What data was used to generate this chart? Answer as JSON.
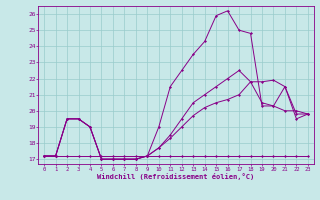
{
  "background_color": "#c8e8e8",
  "grid_color": "#99cccc",
  "line_color": "#880088",
  "xlabel": "Windchill (Refroidissement éolien,°C)",
  "xlim_min": -0.5,
  "xlim_max": 23.5,
  "ylim_min": 16.7,
  "ylim_max": 26.5,
  "yticks": [
    17,
    18,
    19,
    20,
    21,
    22,
    23,
    24,
    25,
    26
  ],
  "xticks": [
    0,
    1,
    2,
    3,
    4,
    5,
    6,
    7,
    8,
    9,
    10,
    11,
    12,
    13,
    14,
    15,
    16,
    17,
    18,
    19,
    20,
    21,
    22,
    23
  ],
  "line1_x": [
    0,
    1,
    2,
    3,
    4,
    5,
    6,
    7,
    8,
    9,
    10,
    11,
    12,
    13,
    14,
    15,
    16,
    17,
    18,
    19,
    20,
    21,
    22,
    23
  ],
  "line1_y": [
    17.2,
    17.2,
    17.2,
    17.2,
    17.2,
    17.2,
    17.2,
    17.2,
    17.2,
    17.2,
    17.2,
    17.2,
    17.2,
    17.2,
    17.2,
    17.2,
    17.2,
    17.2,
    17.2,
    17.2,
    17.2,
    17.2,
    17.2,
    17.2
  ],
  "line2_x": [
    0,
    1,
    2,
    3,
    4,
    5,
    6,
    7,
    8,
    9,
    10,
    11,
    12,
    13,
    14,
    15,
    16,
    17,
    18,
    19,
    20,
    21,
    22,
    23
  ],
  "line2_y": [
    17.2,
    17.2,
    19.5,
    19.5,
    19.0,
    17.0,
    17.0,
    17.0,
    17.0,
    17.2,
    17.7,
    18.3,
    19.0,
    19.7,
    20.2,
    20.5,
    20.7,
    21.0,
    21.8,
    20.5,
    20.3,
    20.0,
    20.0,
    19.8
  ],
  "line3_x": [
    0,
    1,
    2,
    3,
    4,
    5,
    6,
    7,
    8,
    9,
    10,
    11,
    12,
    13,
    14,
    15,
    16,
    17,
    18,
    19,
    20,
    21,
    22,
    23
  ],
  "line3_y": [
    17.2,
    17.2,
    19.5,
    19.5,
    19.0,
    17.0,
    17.0,
    17.0,
    17.0,
    17.2,
    17.7,
    18.5,
    19.5,
    20.5,
    21.0,
    21.5,
    22.0,
    22.5,
    21.8,
    21.8,
    21.9,
    21.5,
    19.8,
    19.8
  ],
  "line4_x": [
    0,
    1,
    2,
    3,
    4,
    5,
    6,
    7,
    8,
    9,
    10,
    11,
    12,
    13,
    14,
    15,
    16,
    17,
    18,
    19,
    20,
    21,
    22,
    23
  ],
  "line4_y": [
    17.2,
    17.2,
    19.5,
    19.5,
    19.0,
    17.0,
    17.0,
    17.0,
    17.0,
    17.2,
    19.0,
    21.5,
    22.5,
    23.5,
    24.3,
    25.9,
    26.2,
    25.0,
    24.8,
    20.3,
    20.3,
    21.5,
    19.5,
    19.8
  ]
}
